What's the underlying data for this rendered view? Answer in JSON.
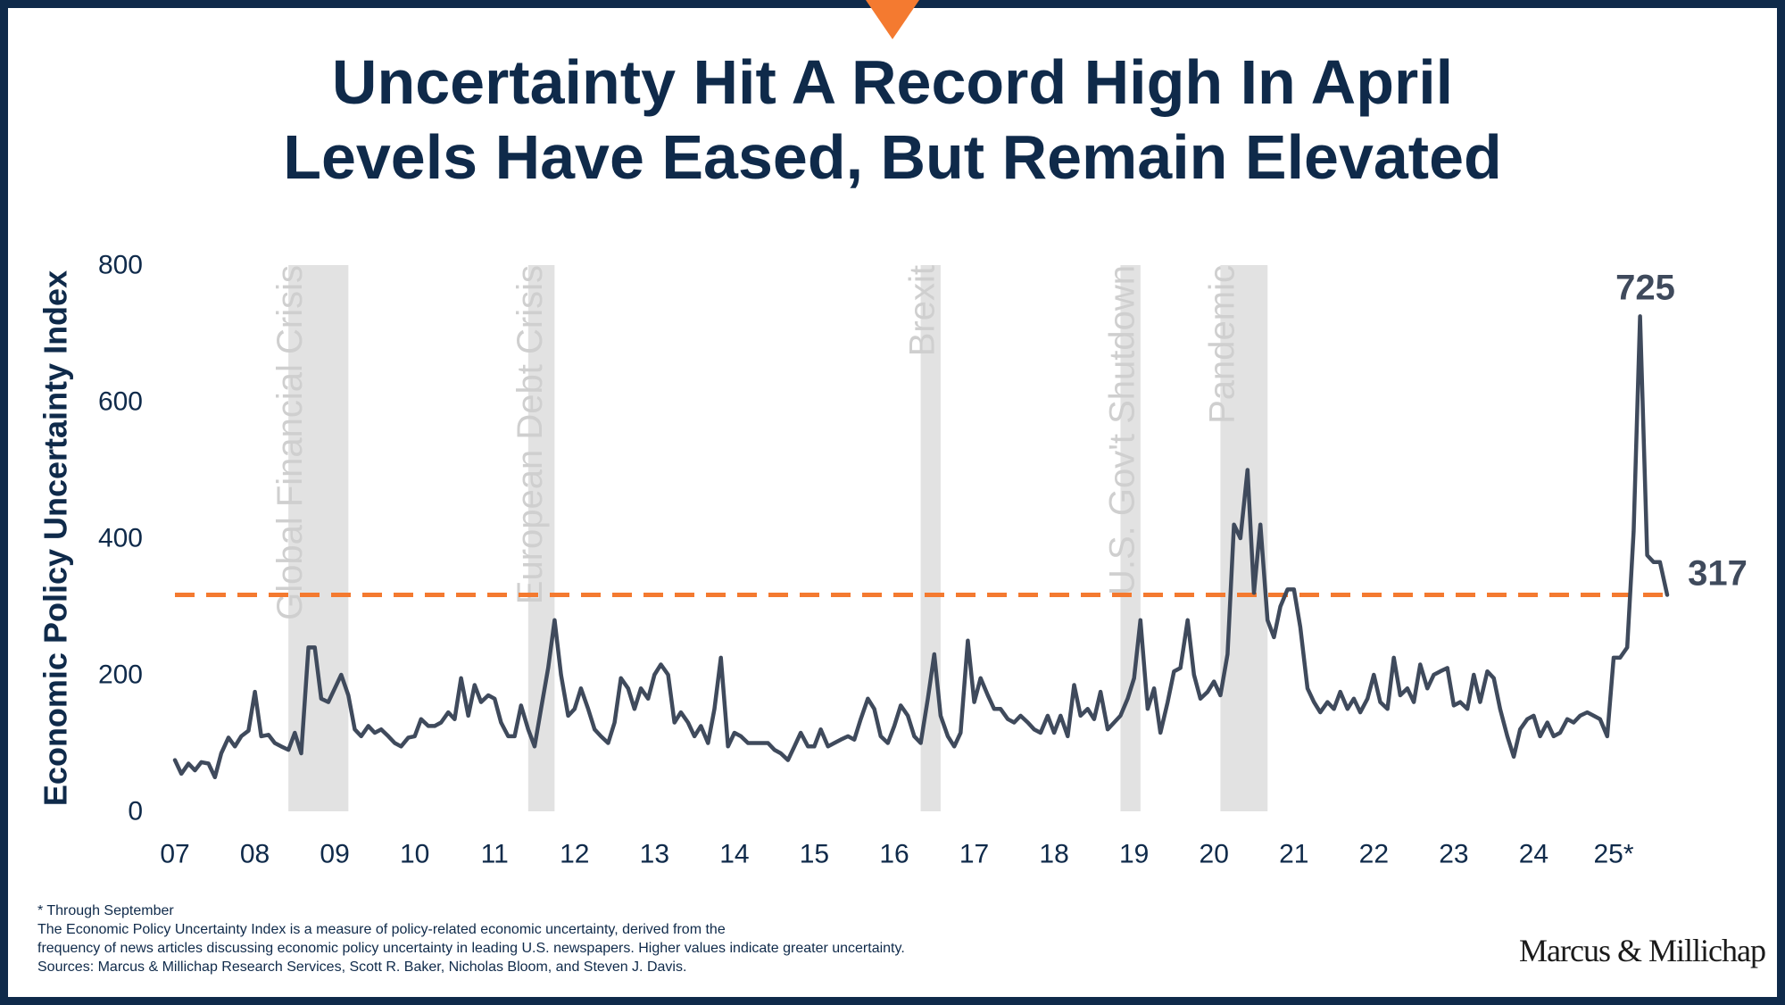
{
  "title": {
    "line1": "Uncertainty Hit A Record High In April",
    "line2": "Levels Have Eased, But Remain Elevated"
  },
  "colors": {
    "navy": "#0f2a4a",
    "line": "#3f4a5c",
    "band": "#e2e2e2",
    "band_label": "#cfcfcf",
    "average": "#f47a30"
  },
  "chart_data": {
    "type": "line",
    "ylabel": "Economic Policy Uncertainty Index",
    "xlabel": "",
    "ylim": [
      0,
      800
    ],
    "yticks": [
      0,
      200,
      400,
      600,
      800
    ],
    "xlim": [
      2007.0,
      2025.75
    ],
    "xticks": [
      "07",
      "08",
      "09",
      "10",
      "11",
      "12",
      "13",
      "14",
      "15",
      "16",
      "17",
      "18",
      "19",
      "20",
      "21",
      "22",
      "23",
      "24",
      "25*"
    ],
    "grid": false,
    "series": [
      {
        "x": [
          2007.0,
          2007.08,
          2007.17,
          2007.25,
          2007.33,
          2007.42,
          2007.5,
          2007.58,
          2007.67,
          2007.75,
          2007.83,
          2007.92,
          2008.0,
          2008.08,
          2008.17,
          2008.25,
          2008.33,
          2008.42,
          2008.5,
          2008.58,
          2008.67,
          2008.75,
          2008.83,
          2008.92,
          2009.0,
          2009.08,
          2009.17,
          2009.25,
          2009.33,
          2009.42,
          2009.5,
          2009.58,
          2009.67,
          2009.75,
          2009.83,
          2009.92,
          2010.0,
          2010.08,
          2010.17,
          2010.25,
          2010.33,
          2010.42,
          2010.5,
          2010.58,
          2010.67,
          2010.75,
          2010.83,
          2010.92,
          2011.0,
          2011.08,
          2011.17,
          2011.25,
          2011.33,
          2011.42,
          2011.5,
          2011.58,
          2011.67,
          2011.75,
          2011.83,
          2011.92,
          2012.0,
          2012.08,
          2012.17,
          2012.25,
          2012.33,
          2012.42,
          2012.5,
          2012.58,
          2012.67,
          2012.75,
          2012.83,
          2012.92,
          2013.0,
          2013.08,
          2013.17,
          2013.25,
          2013.33,
          2013.42,
          2013.5,
          2013.58,
          2013.67,
          2013.75,
          2013.83,
          2013.92,
          2014.0,
          2014.08,
          2014.17,
          2014.25,
          2014.33,
          2014.42,
          2014.5,
          2014.58,
          2014.67,
          2014.75,
          2014.83,
          2014.92,
          2015.0,
          2015.08,
          2015.17,
          2015.25,
          2015.33,
          2015.42,
          2015.5,
          2015.58,
          2015.67,
          2015.75,
          2015.83,
          2015.92,
          2016.0,
          2016.08,
          2016.17,
          2016.25,
          2016.33,
          2016.42,
          2016.5,
          2016.58,
          2016.67,
          2016.75,
          2016.83,
          2016.92,
          2017.0,
          2017.08,
          2017.17,
          2017.25,
          2017.33,
          2017.42,
          2017.5,
          2017.58,
          2017.67,
          2017.75,
          2017.83,
          2017.92,
          2018.0,
          2018.08,
          2018.17,
          2018.25,
          2018.33,
          2018.42,
          2018.5,
          2018.58,
          2018.67,
          2018.75,
          2018.83,
          2018.92,
          2019.0,
          2019.08,
          2019.17,
          2019.25,
          2019.33,
          2019.42,
          2019.5,
          2019.58,
          2019.67,
          2019.75,
          2019.83,
          2019.92,
          2020.0,
          2020.08,
          2020.17,
          2020.25,
          2020.33,
          2020.42,
          2020.5,
          2020.58,
          2020.67,
          2020.75,
          2020.83,
          2020.92,
          2021.0,
          2021.08,
          2021.17,
          2021.25,
          2021.33,
          2021.42,
          2021.5,
          2021.58,
          2021.67,
          2021.75,
          2021.83,
          2021.92,
          2022.0,
          2022.08,
          2022.17,
          2022.25,
          2022.33,
          2022.42,
          2022.5,
          2022.58,
          2022.67,
          2022.75,
          2022.83,
          2022.92,
          2023.0,
          2023.08,
          2023.17,
          2023.25,
          2023.33,
          2023.42,
          2023.5,
          2023.58,
          2023.67,
          2023.75,
          2023.83,
          2023.92,
          2024.0,
          2024.08,
          2024.17,
          2024.25,
          2024.33,
          2024.42,
          2024.5,
          2024.58,
          2024.67,
          2024.75,
          2024.83,
          2024.92,
          2025.0,
          2025.08,
          2025.17,
          2025.25,
          2025.33,
          2025.42,
          2025.5,
          2025.58,
          2025.67
        ],
        "y": [
          75,
          55,
          70,
          60,
          72,
          70,
          50,
          85,
          108,
          95,
          110,
          118,
          175,
          110,
          112,
          100,
          95,
          90,
          115,
          85,
          240,
          240,
          165,
          160,
          180,
          200,
          170,
          120,
          110,
          125,
          115,
          120,
          110,
          100,
          95,
          108,
          110,
          135,
          125,
          125,
          130,
          145,
          135,
          195,
          140,
          185,
          160,
          170,
          165,
          130,
          110,
          110,
          155,
          120,
          95,
          150,
          210,
          280,
          200,
          140,
          150,
          180,
          150,
          120,
          110,
          100,
          130,
          195,
          180,
          150,
          180,
          165,
          200,
          215,
          200,
          130,
          145,
          130,
          110,
          125,
          100,
          150,
          225,
          95,
          115,
          110,
          100,
          100,
          100,
          100,
          90,
          85,
          75,
          95,
          115,
          95,
          95,
          120,
          95,
          100,
          105,
          110,
          105,
          135,
          165,
          150,
          110,
          100,
          125,
          155,
          140,
          110,
          100,
          165,
          230,
          140,
          110,
          95,
          115,
          250,
          160,
          195,
          170,
          150,
          150,
          135,
          130,
          140,
          130,
          120,
          115,
          140,
          115,
          140,
          110,
          185,
          140,
          150,
          135,
          175,
          120,
          130,
          140,
          165,
          195,
          280,
          150,
          180,
          115,
          160,
          205,
          210,
          280,
          200,
          165,
          175,
          190,
          170,
          230,
          420,
          400,
          500,
          320,
          420,
          280,
          255,
          300,
          325,
          325,
          270,
          180,
          160,
          145,
          160,
          150,
          175,
          150,
          165,
          145,
          165,
          200,
          160,
          150,
          225,
          170,
          180,
          160,
          215,
          180,
          200,
          205,
          210,
          155,
          160,
          150,
          200,
          160,
          205,
          195,
          150,
          110,
          80,
          120,
          135,
          140,
          110,
          130,
          110,
          115,
          135,
          130,
          140,
          145,
          140,
          135,
          110,
          225,
          225,
          240,
          410,
          725,
          375,
          365,
          365,
          317
        ]
      }
    ],
    "average_line": {
      "value": 317,
      "label": "317"
    },
    "peak_label": {
      "x": 2025.33,
      "y": 725,
      "text": "725"
    },
    "shaded_periods": [
      {
        "label": "Global Financial Crisis",
        "start": 2008.42,
        "end": 2009.17
      },
      {
        "label": "European Debt Crisis",
        "start": 2011.42,
        "end": 2011.75
      },
      {
        "label": "Brexit",
        "start": 2016.33,
        "end": 2016.58
      },
      {
        "label": "U.S. Gov't Shutdown",
        "start": 2018.83,
        "end": 2019.08
      },
      {
        "label": "Pandemic",
        "start": 2020.08,
        "end": 2020.67
      }
    ]
  },
  "footnotes": [
    "* Through September",
    "The Economic Policy Uncertainty Index is a measure of policy-related economic uncertainty, derived from the",
    "frequency of news articles discussing economic policy uncertainty in leading U.S. newspapers. Higher values indicate greater uncertainty.",
    "Sources: Marcus & Millichap Research Services, Scott R. Baker, Nicholas Bloom, and Steven J. Davis."
  ],
  "logo": "Marcus & Millichap"
}
